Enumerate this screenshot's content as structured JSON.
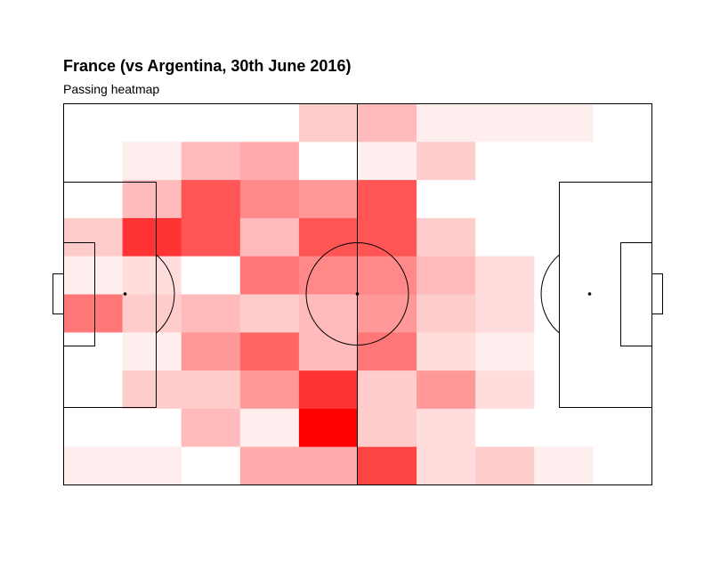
{
  "chart_data": {
    "type": "heatmap",
    "title": "France (vs Argentina, 30th June 2016)",
    "subtitle": "Passing heatmap",
    "xlim": [
      0,
      100
    ],
    "ylim": [
      0,
      100
    ],
    "grid_cols": 10,
    "grid_rows": 10,
    "color_low": "#ffffff",
    "color_high": "#ff0000",
    "max_value": 15,
    "rows_top_to_bottom": [
      [
        0,
        0,
        0,
        0,
        3,
        4,
        1,
        1,
        1,
        0
      ],
      [
        0,
        1,
        4,
        5,
        0,
        1,
        3,
        0,
        0,
        0
      ],
      [
        0,
        4,
        10,
        7,
        6,
        10,
        0,
        0,
        0,
        0
      ],
      [
        3,
        12,
        10,
        4,
        10,
        10,
        3,
        0,
        0,
        0
      ],
      [
        1,
        2,
        0,
        8,
        7,
        7,
        4,
        2,
        0,
        0
      ],
      [
        8,
        3,
        4,
        3,
        4,
        6,
        3,
        2,
        0,
        0
      ],
      [
        0,
        1,
        6,
        9,
        4,
        8,
        2,
        1,
        0,
        0
      ],
      [
        0,
        3,
        3,
        6,
        12,
        3,
        6,
        2,
        0,
        0
      ],
      [
        0,
        0,
        4,
        1,
        15,
        3,
        2,
        0,
        0,
        0
      ],
      [
        1,
        1,
        0,
        5,
        5,
        11,
        2,
        3,
        1,
        0
      ]
    ],
    "pitch_line_color": "#000000"
  }
}
